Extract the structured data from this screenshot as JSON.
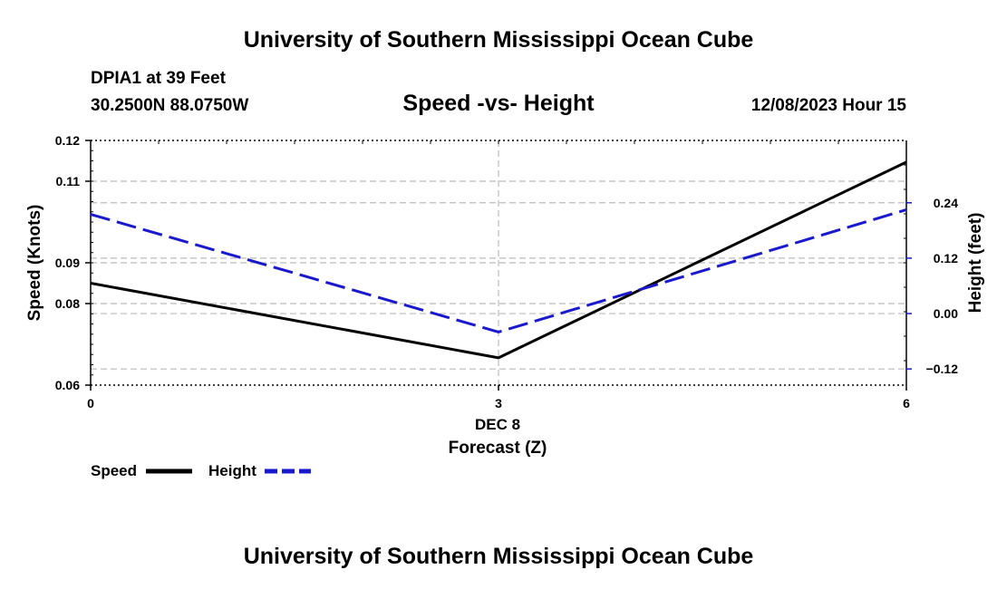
{
  "top_title": "University of Southern Mississippi Ocean Cube",
  "bottom_title": "University of Southern Mississippi Ocean Cube",
  "station": {
    "name": "DPIA1 at 39 Feet",
    "location": "30.2500N  88.0750W"
  },
  "datetime": "12/08/2023 Hour 15",
  "colors": {
    "speed": "#000000",
    "height": "#1a1acc",
    "grid": "#bbbbbb"
  },
  "chart_data": {
    "type": "line",
    "title": "Speed -vs- Height",
    "xlabel_date": "DEC 8",
    "xlabel": "Forecast (Z)",
    "ylabel": "Speed (Knots)",
    "y2label": "Height (feet)",
    "x": [
      0,
      3,
      6
    ],
    "xlim": [
      0,
      6
    ],
    "x_ticks": [
      "0",
      "3",
      "6"
    ],
    "ylim": [
      0.06,
      0.12
    ],
    "y_ticks": [
      "0.06",
      "0.08",
      "0.09",
      "0.11",
      "0.12"
    ],
    "y2lim": [
      -0.155,
      0.375
    ],
    "y2_ticks": [
      "−0.12",
      "0.00",
      "0.12",
      "0.24"
    ],
    "series": [
      {
        "name": "Speed",
        "axis": "left",
        "values": [
          0.085,
          0.0667,
          0.1147
        ]
      },
      {
        "name": "Height",
        "axis": "right",
        "values": [
          0.215,
          -0.04,
          0.225
        ]
      }
    ],
    "legend": [
      "Speed",
      "Height"
    ]
  }
}
